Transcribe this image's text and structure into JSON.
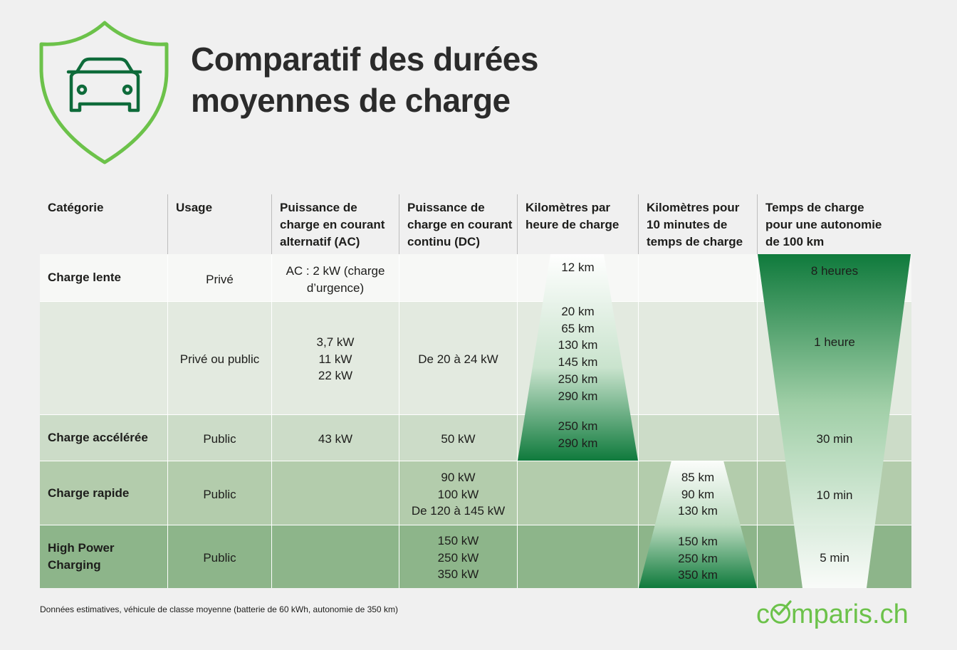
{
  "title_line1": "Comparatif des durées",
  "title_line2": "moyennes de charge",
  "icons": {
    "logo": "shield-car-icon"
  },
  "colors": {
    "brand_green": "#6cc24a",
    "dark_green": "#0f7a3c"
  },
  "headers": [
    "Catégorie",
    "Usage",
    "Puissance de\ncharge en courant\nalternatif (AC)",
    "Puissance de\ncharge en courant\ncontinu (DC)",
    "Kilomètres par\nheure de charge",
    "Kilomètres pour\n10 minutes de\ntemps de charge",
    "Temps de charge\npour une autonomie\nde 100 km"
  ],
  "rows": [
    {
      "category": "Charge lente",
      "usage": "Privé",
      "ac": "AC : 2 kW (charge\nd’urgence)",
      "dc": "",
      "km_hour": "12 km",
      "km_10min": "",
      "time_100km": "8 heures"
    },
    {
      "category": "",
      "usage": "Privé ou public",
      "ac": "3,7 kW\n11 kW\n22 kW",
      "dc": "De 20 à 24 kW",
      "km_hour": "20 km\n65 km\n130 km\n145 km\n250 km\n290 km",
      "km_10min": "",
      "time_100km": "1 heure"
    },
    {
      "category": "Charge accélérée",
      "usage": "Public",
      "ac": "43 kW",
      "dc": "50 kW",
      "km_hour": "250 km\n290 km",
      "km_10min": "",
      "time_100km": "30 min"
    },
    {
      "category": "Charge rapide",
      "usage": "Public",
      "ac": "",
      "dc": "90 kW\n100 kW\nDe 120 à 145 kW",
      "km_hour": "",
      "km_10min": "85 km\n90 km\n130 km",
      "time_100km": "10 min"
    },
    {
      "category": "High Power\nCharging",
      "usage": "Public",
      "ac": "",
      "dc": "150 kW\n250 kW\n350 kW",
      "km_hour": "",
      "km_10min": "150 km\n250 km\n350 km",
      "time_100km": "5 min"
    }
  ],
  "footnote": "Données estimatives, véhicule de classe moyenne (batterie de 60 kWh, autonomie de 350 km)",
  "brand": {
    "pre": "c",
    "post": "mparis.ch"
  }
}
